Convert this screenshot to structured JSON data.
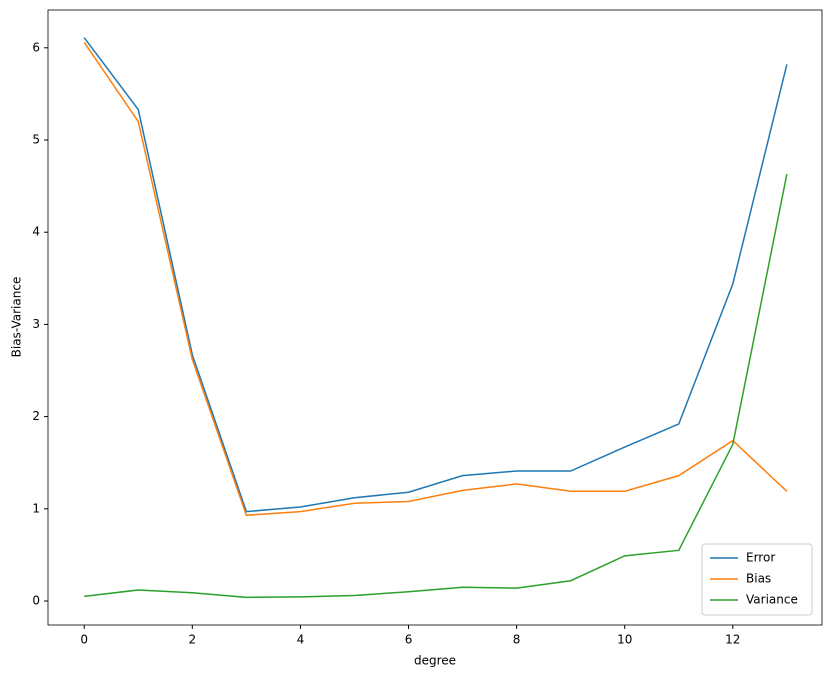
{
  "chart_data": {
    "type": "line",
    "xlabel": "degree",
    "ylabel": "Bias-Variance",
    "x": [
      0,
      1,
      2,
      3,
      4,
      5,
      6,
      7,
      8,
      9,
      10,
      11,
      12,
      13
    ],
    "series": [
      {
        "name": "Error",
        "color": "#1f77b4",
        "values": [
          6.11,
          5.33,
          2.67,
          0.97,
          1.02,
          1.12,
          1.18,
          1.36,
          1.41,
          1.41,
          1.67,
          1.92,
          3.44,
          5.82
        ]
      },
      {
        "name": "Bias",
        "color": "#ff7f0e",
        "values": [
          6.06,
          5.2,
          2.62,
          0.93,
          0.97,
          1.06,
          1.08,
          1.2,
          1.27,
          1.19,
          1.19,
          1.36,
          1.74,
          1.19
        ]
      },
      {
        "name": "Variance",
        "color": "#2ca02c",
        "values": [
          0.05,
          0.12,
          0.09,
          0.04,
          0.045,
          0.06,
          0.1,
          0.15,
          0.14,
          0.22,
          0.49,
          0.55,
          1.7,
          4.63
        ]
      }
    ],
    "xlim": [
      -0.67,
      13.65
    ],
    "xticks": [
      0,
      2,
      4,
      6,
      8,
      10,
      12
    ],
    "ylim": [
      -0.26,
      6.41
    ],
    "yticks": [
      0,
      1,
      2,
      3,
      4,
      5,
      6
    ],
    "grid": false,
    "legend": "lower right"
  }
}
